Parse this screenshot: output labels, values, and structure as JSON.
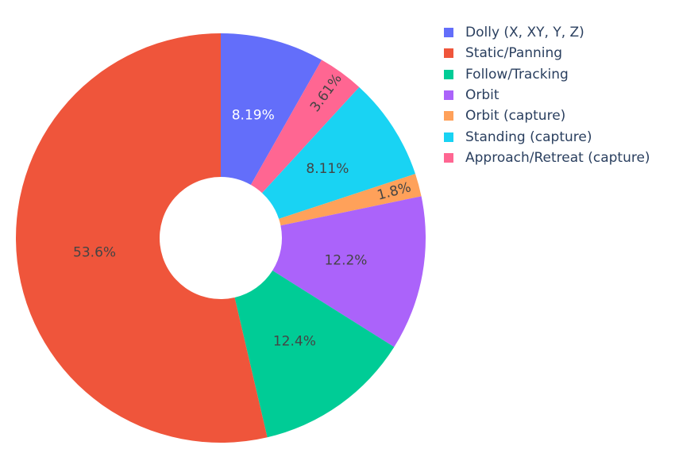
{
  "chart_data": {
    "type": "pie",
    "hole": true,
    "legend_position": "top-right",
    "slices": [
      {
        "label": "Dolly (X, XY, Y, Z)",
        "value": 8.19,
        "display": "8.19%",
        "color": "#636efa",
        "text_color": "#ffffff"
      },
      {
        "label": "Approach/Retreat (capture)",
        "value": 3.61,
        "display": "3.61%",
        "color": "#ff6692",
        "text_color": "#444444"
      },
      {
        "label": "Standing (capture)",
        "value": 8.11,
        "display": "8.11%",
        "color": "#19d3f3",
        "text_color": "#444444"
      },
      {
        "label": "Orbit (capture)",
        "value": 1.8,
        "display": "1.8%",
        "color": "#ffa15a",
        "text_color": "#444444"
      },
      {
        "label": "Orbit",
        "value": 12.2,
        "display": "12.2%",
        "color": "#ab63fa",
        "text_color": "#444444"
      },
      {
        "label": "Follow/Tracking",
        "value": 12.4,
        "display": "12.4%",
        "color": "#00cc96",
        "text_color": "#444444"
      },
      {
        "label": "Static/Panning",
        "value": 53.6,
        "display": "53.6%",
        "color": "#ef553b",
        "text_color": "#444444"
      }
    ],
    "legend": [
      {
        "label": "Dolly (X, XY, Y, Z)",
        "color": "#636efa"
      },
      {
        "label": "Static/Panning",
        "color": "#ef553b"
      },
      {
        "label": "Follow/Tracking",
        "color": "#00cc96"
      },
      {
        "label": "Orbit",
        "color": "#ab63fa"
      },
      {
        "label": "Orbit (capture)",
        "color": "#ffa15a"
      },
      {
        "label": "Standing (capture)",
        "color": "#19d3f3"
      },
      {
        "label": "Approach/Retreat (capture)",
        "color": "#ff6692"
      }
    ]
  }
}
